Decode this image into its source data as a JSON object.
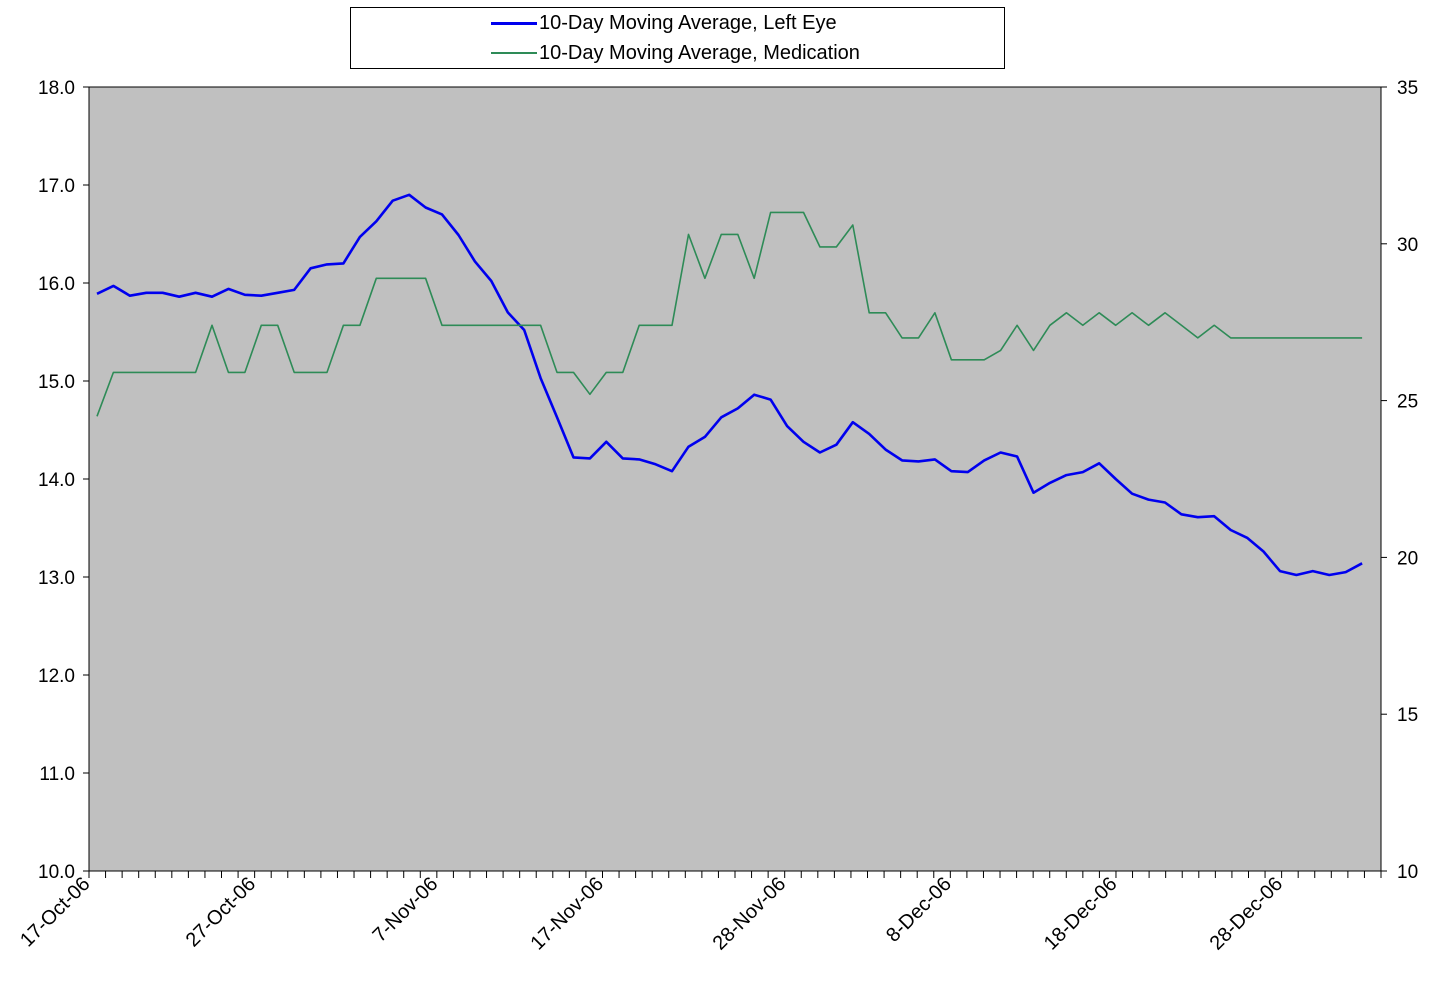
{
  "chart_data": {
    "type": "line",
    "x_start": "17-Oct-06",
    "x_tick_labels": [
      "17-Oct-06",
      "27-Oct-06",
      "7-Nov-06",
      "17-Nov-06",
      "28-Nov-06",
      "8-Dec-06",
      "18-Dec-06",
      "28-Dec-06"
    ],
    "y_left": {
      "ylim": [
        10,
        18
      ],
      "ticks": [
        "10.0",
        "11.0",
        "12.0",
        "13.0",
        "14.0",
        "15.0",
        "16.0",
        "17.0",
        "18.0"
      ]
    },
    "y_right": {
      "ylim": [
        10,
        35
      ],
      "ticks": [
        "10",
        "15",
        "20",
        "25",
        "30",
        "35"
      ]
    },
    "plot_background": "#c0c0c0",
    "legend_position": "top-center",
    "series": [
      {
        "name": "10-Day Moving Average, Left Eye",
        "axis": "left",
        "color": "#0000ee",
        "values": [
          15.89,
          15.97,
          15.87,
          15.9,
          15.9,
          15.86,
          15.9,
          15.86,
          15.94,
          15.88,
          15.87,
          15.9,
          15.93,
          16.15,
          16.19,
          16.2,
          16.47,
          16.63,
          16.84,
          16.9,
          16.77,
          16.7,
          16.49,
          16.22,
          16.02,
          15.7,
          15.52,
          15.03,
          14.63,
          14.22,
          14.21,
          14.38,
          14.21,
          14.2,
          14.15,
          14.08,
          14.33,
          14.43,
          14.63,
          14.72,
          14.86,
          14.81,
          14.54,
          14.38,
          14.27,
          14.35,
          14.58,
          14.46,
          14.3,
          14.19,
          14.18,
          14.2,
          14.08,
          14.07,
          14.19,
          14.27,
          14.23,
          13.86,
          13.96,
          14.04,
          14.07,
          14.16,
          14.0,
          13.85,
          13.79,
          13.76,
          13.64,
          13.61,
          13.62,
          13.48,
          13.4,
          13.26,
          13.06,
          13.02,
          13.06,
          13.02,
          13.05,
          13.14
        ]
      },
      {
        "name": "10-Day Moving Average, Medication",
        "axis": "right",
        "color": "#2e8b57",
        "values": [
          24.5,
          25.9,
          25.9,
          25.9,
          25.9,
          25.9,
          25.9,
          27.4,
          25.9,
          25.9,
          27.4,
          27.4,
          25.9,
          25.9,
          25.9,
          27.4,
          27.4,
          28.9,
          28.9,
          28.9,
          28.9,
          27.4,
          27.4,
          27.4,
          27.4,
          27.4,
          27.4,
          27.4,
          25.9,
          25.9,
          25.2,
          25.9,
          25.9,
          27.4,
          27.4,
          27.4,
          30.3,
          28.9,
          30.3,
          30.3,
          28.9,
          31.0,
          31.0,
          31.0,
          29.9,
          29.9,
          30.6,
          27.8,
          27.8,
          27.0,
          27.0,
          27.8,
          26.3,
          26.3,
          26.3,
          26.6,
          27.4,
          26.6,
          27.4,
          27.8,
          27.4,
          27.8,
          27.4,
          27.8,
          27.4,
          27.8,
          27.4,
          27.0,
          27.4,
          27.0,
          27.0,
          27.0,
          27.0,
          27.0,
          27.0,
          27.0,
          27.0,
          27.0
        ]
      }
    ]
  }
}
